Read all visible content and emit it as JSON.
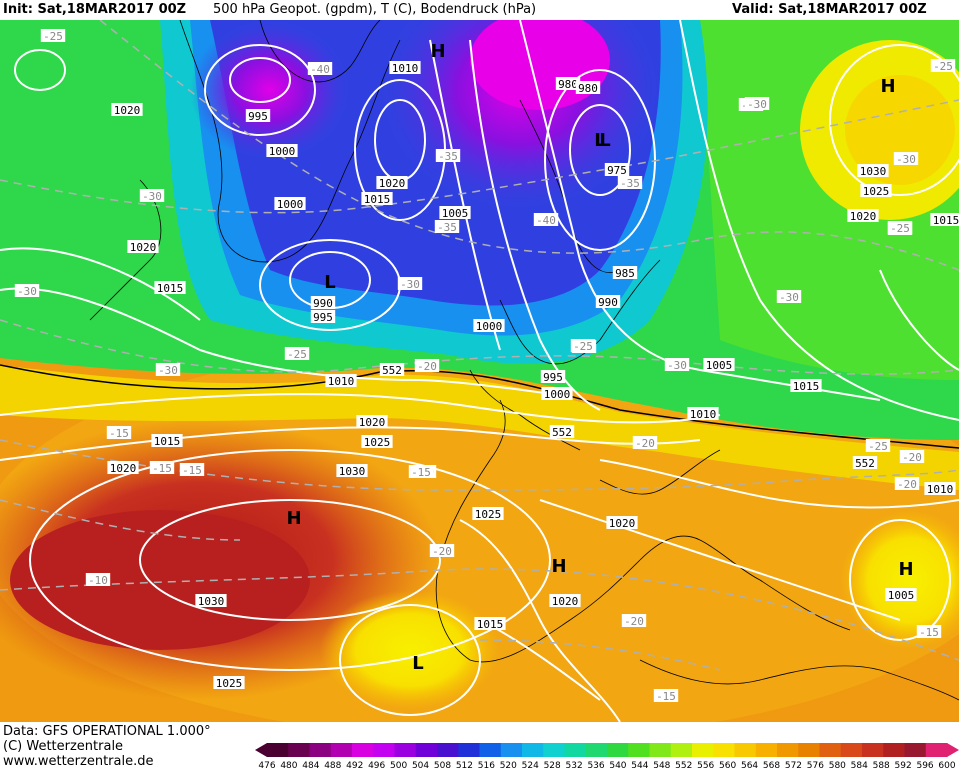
{
  "header": {
    "init": "Init: Sat,18MAR2017 00Z",
    "title": "500 hPa Geopot. (gpdm), T (C), Bodendruck (hPa)",
    "valid": "Valid: Sat,18MAR2017 00Z"
  },
  "footer": {
    "line1": "Data: GFS OPERATIONAL 1.000°",
    "line2": "(C) Wetterzentrale",
    "line3": "www.wetterzentrale.de"
  },
  "colorbar": {
    "ticks": [
      "476",
      "480",
      "484",
      "488",
      "492",
      "496",
      "500",
      "504",
      "508",
      "512",
      "516",
      "520",
      "524",
      "528",
      "532",
      "536",
      "540",
      "544",
      "548",
      "552",
      "556",
      "560",
      "564",
      "568",
      "572",
      "576",
      "580",
      "584",
      "588",
      "592",
      "596",
      "600"
    ],
    "colors": [
      "#4a0030",
      "#6a0050",
      "#8a0080",
      "#b000b0",
      "#d800e0",
      "#c400f0",
      "#9a00e0",
      "#7000d8",
      "#4a10d0",
      "#2030d8",
      "#1060e8",
      "#1890f0",
      "#10b8e8",
      "#10d0d0",
      "#10d8a0",
      "#20d870",
      "#30d840",
      "#50e020",
      "#80e818",
      "#b0f010",
      "#e8f000",
      "#f8e000",
      "#f8c800",
      "#f8b000",
      "#f09800",
      "#e88000",
      "#e06010",
      "#d84818",
      "#c83020",
      "#b02020",
      "#981830",
      "#e02070"
    ]
  },
  "map": {
    "pressure_labels": [
      "1020",
      "995",
      "1000",
      "1010",
      "1020",
      "1015",
      "1000",
      "1005",
      "990",
      "995",
      "980",
      "980",
      "975",
      "985",
      "990",
      "1020",
      "1015",
      "1000",
      "995",
      "1000",
      "1005",
      "1010",
      "1015",
      "1030",
      "1025",
      "1020",
      "1015",
      "552",
      "552",
      "1010",
      "1020",
      "1025",
      "1030",
      "1015",
      "1020",
      "1025",
      "1030",
      "1025",
      "1020",
      "1020",
      "1015",
      "1005",
      "1010",
      "552"
    ],
    "temp_labels": [
      "-25",
      "-40",
      "-35",
      "-35",
      "-40",
      "-35",
      "-30",
      "-30",
      "-30",
      "-25",
      "-30",
      "-25",
      "-30",
      "-25",
      "-20",
      "-20",
      "-15",
      "-15",
      "-15",
      "-20",
      "-20",
      "-10",
      "-20",
      "-20",
      "-15",
      "-15",
      "-30",
      "-25",
      "-25",
      "-30",
      "-20",
      "-25",
      "-30",
      "-30",
      "-20",
      "-15"
    ],
    "centers": [
      "H",
      "L",
      "L",
      "H",
      "H",
      "H",
      "L",
      "H",
      "L"
    ]
  }
}
